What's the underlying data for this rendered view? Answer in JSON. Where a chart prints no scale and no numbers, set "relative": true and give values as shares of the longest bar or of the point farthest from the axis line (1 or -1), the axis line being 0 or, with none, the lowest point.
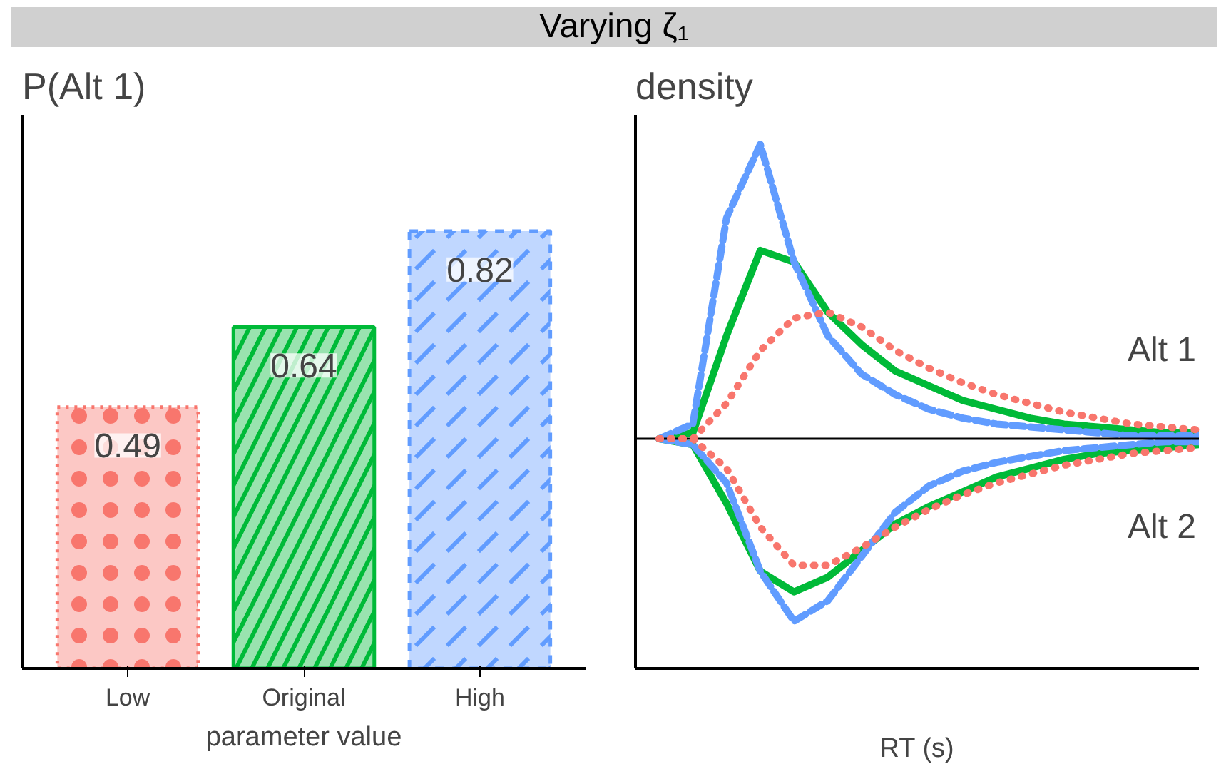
{
  "chart_data": [
    {
      "type": "bar",
      "title": "Varying ζ₁",
      "ylabel": "P(Alt 1)",
      "xlabel": "parameter value",
      "categories": [
        "Low",
        "Original",
        "High"
      ],
      "values": [
        0.49,
        0.64,
        0.82
      ],
      "colors": [
        "#f8766d",
        "#00ba38",
        "#619cff"
      ],
      "data_labels": true,
      "grid": false
    },
    {
      "type": "line",
      "relative": true,
      "ylabel": "density",
      "xlabel": "RT (s)",
      "categories": [
        null,
        null,
        null,
        null,
        null,
        null,
        null,
        null,
        null,
        null,
        null,
        null,
        null,
        null,
        null,
        null,
        null
      ],
      "grid": false,
      "marker": "none",
      "annotations": [
        "Alt 1",
        "Alt 2"
      ],
      "series": [
        {
          "color": "#f8766d",
          "line_style": "dotted",
          "values": [
            0,
            0,
            0.12,
            0.3,
            0.41,
            0.43,
            0.38,
            0.3,
            0.24,
            0.19,
            0.15,
            0.12,
            0.09,
            0.07,
            0.05,
            0.04,
            0.03
          ]
        },
        {
          "color": "#f8766d",
          "line_style": "dotted",
          "values": [
            0,
            0,
            -0.1,
            -0.3,
            -0.43,
            -0.43,
            -0.37,
            -0.3,
            -0.24,
            -0.19,
            -0.15,
            -0.12,
            -0.09,
            -0.07,
            -0.05,
            -0.04,
            -0.03
          ]
        },
        {
          "color": "#00ba38",
          "line_style": "solid",
          "values": [
            0,
            0.02,
            0.35,
            0.64,
            0.6,
            0.43,
            0.32,
            0.23,
            0.18,
            0.13,
            0.1,
            0.07,
            0.05,
            0.04,
            0.03,
            0.02,
            0.02
          ]
        },
        {
          "color": "#00ba38",
          "line_style": "solid",
          "values": [
            0,
            -0.02,
            -0.22,
            -0.45,
            -0.52,
            -0.47,
            -0.38,
            -0.29,
            -0.23,
            -0.18,
            -0.13,
            -0.1,
            -0.07,
            -0.05,
            -0.04,
            -0.03,
            -0.02
          ]
        },
        {
          "color": "#619cff",
          "line_style": "dashed",
          "values": [
            0,
            0.05,
            0.75,
            1,
            0.6,
            0.35,
            0.22,
            0.15,
            0.1,
            0.07,
            0.05,
            0.04,
            0.03,
            0.02,
            0.01,
            0.01,
            0.01
          ]
        },
        {
          "color": "#619cff",
          "line_style": "dashed",
          "values": [
            0,
            -0.02,
            -0.15,
            -0.45,
            -0.62,
            -0.55,
            -0.4,
            -0.25,
            -0.16,
            -0.11,
            -0.08,
            -0.06,
            -0.04,
            -0.03,
            -0.02,
            -0.01,
            -0.01
          ]
        }
      ]
    }
  ]
}
